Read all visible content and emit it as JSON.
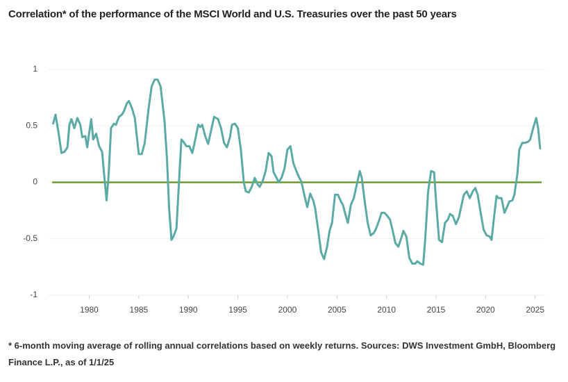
{
  "chart_data": {
    "type": "line",
    "title": "Correlation* of the performance of the MSCI World and U.S. Treasuries over the past 50 years",
    "footnote": "* 6-month moving average of rolling annual correlations based on weekly returns. Sources: DWS Investment GmbH, Bloomberg Finance L.P., as of 1/1/25",
    "color": "#5aaaa6",
    "reference_line": {
      "value": 0,
      "color": "#6e9a2c"
    },
    "grid": true,
    "xlim": [
      1975.9,
      2026
    ],
    "xticks": [
      1980,
      1985,
      1990,
      1995,
      2000,
      2005,
      2010,
      2015,
      2020,
      2025
    ],
    "ylim": [
      -1,
      1
    ],
    "yticks": [
      1,
      0.5,
      0,
      -0.5,
      -1
    ],
    "x": [
      1976.36,
      1976.6,
      1976.9,
      1977.2,
      1977.5,
      1977.8,
      1978.0,
      1978.2,
      1978.5,
      1978.8,
      1979.1,
      1979.3,
      1979.6,
      1979.8,
      1980.0,
      1980.2,
      1980.4,
      1980.7,
      1981.0,
      1981.3,
      1981.5,
      1981.75,
      1981.96,
      1982.2,
      1982.5,
      1982.7,
      1983.0,
      1983.3,
      1983.5,
      1983.8,
      1984.0,
      1984.3,
      1984.6,
      1984.8,
      1985.0,
      1985.3,
      1985.6,
      1986.0,
      1986.3,
      1986.6,
      1986.9,
      1987.2,
      1987.6,
      1987.85,
      1988.06,
      1988.3,
      1988.5,
      1988.8,
      1989.1,
      1989.3,
      1989.5,
      1989.8,
      1990.1,
      1990.4,
      1990.7,
      1991.0,
      1991.2,
      1991.4,
      1991.7,
      1992.0,
      1992.3,
      1992.6,
      1993.0,
      1993.3,
      1993.6,
      1993.9,
      1994.2,
      1994.4,
      1994.7,
      1995.0,
      1995.3,
      1995.6,
      1995.8,
      1996.1,
      1996.4,
      1996.7,
      1997.0,
      1997.2,
      1997.5,
      1997.8,
      1998.1,
      1998.4,
      1998.6,
      1998.9,
      1999.1,
      1999.4,
      1999.7,
      2000.0,
      2000.3,
      2000.6,
      2000.9,
      2001.2,
      2001.4,
      2001.7,
      2002.0,
      2002.3,
      2002.6,
      2002.8,
      2003.1,
      2003.4,
      2003.7,
      2004.0,
      2004.25,
      2004.5,
      2004.8,
      2005.1,
      2005.4,
      2005.6,
      2005.9,
      2006.1,
      2006.4,
      2006.7,
      2007.0,
      2007.3,
      2007.5,
      2007.8,
      2008.1,
      2008.4,
      2008.7,
      2008.9,
      2009.2,
      2009.5,
      2009.8,
      2010.1,
      2010.35,
      2010.6,
      2010.9,
      2011.2,
      2011.5,
      2011.7,
      2012.0,
      2012.3,
      2012.6,
      2012.9,
      2013.1,
      2013.4,
      2013.7,
      2013.9,
      2014.2,
      2014.5,
      2014.8,
      2015.0,
      2015.3,
      2015.6,
      2015.9,
      2016.2,
      2016.4,
      2016.7,
      2017.0,
      2017.3,
      2017.5,
      2017.8,
      2018.1,
      2018.4,
      2018.7,
      2018.96,
      2019.2,
      2019.5,
      2019.8,
      2020.1,
      2020.4,
      2020.6,
      2020.9,
      2021.1,
      2021.3,
      2021.6,
      2021.9,
      2022.1,
      2022.4,
      2022.7,
      2022.9,
      2023.2,
      2023.4,
      2023.7,
      2024.0,
      2024.3,
      2024.5,
      2024.8,
      2025.1,
      2025.3,
      2025.5
    ],
    "values": [
      0.52,
      0.6,
      0.44,
      0.26,
      0.27,
      0.31,
      0.51,
      0.56,
      0.48,
      0.57,
      0.51,
      0.4,
      0.41,
      0.31,
      0.44,
      0.56,
      0.38,
      0.43,
      0.32,
      0.27,
      0.07,
      -0.16,
      0.07,
      0.48,
      0.52,
      0.51,
      0.58,
      0.6,
      0.63,
      0.7,
      0.72,
      0.66,
      0.57,
      0.41,
      0.25,
      0.25,
      0.35,
      0.66,
      0.85,
      0.91,
      0.91,
      0.85,
      0.54,
      0.2,
      -0.23,
      -0.51,
      -0.48,
      -0.41,
      0.07,
      0.38,
      0.36,
      0.32,
      0.32,
      0.26,
      0.38,
      0.51,
      0.49,
      0.51,
      0.41,
      0.34,
      0.46,
      0.58,
      0.56,
      0.48,
      0.35,
      0.31,
      0.4,
      0.51,
      0.52,
      0.48,
      0.29,
      0.0,
      -0.08,
      -0.09,
      -0.04,
      0.04,
      -0.02,
      -0.04,
      0.01,
      0.1,
      0.26,
      0.23,
      0.09,
      0.04,
      0.0,
      0.04,
      0.12,
      0.29,
      0.32,
      0.17,
      0.1,
      0.04,
      0.01,
      -0.11,
      -0.22,
      -0.1,
      -0.16,
      -0.23,
      -0.42,
      -0.62,
      -0.68,
      -0.57,
      -0.43,
      -0.36,
      -0.11,
      -0.11,
      -0.17,
      -0.2,
      -0.3,
      -0.36,
      -0.2,
      -0.14,
      -0.02,
      0.1,
      0.04,
      -0.17,
      -0.36,
      -0.47,
      -0.45,
      -0.42,
      -0.35,
      -0.27,
      -0.27,
      -0.3,
      -0.33,
      -0.42,
      -0.54,
      -0.57,
      -0.49,
      -0.43,
      -0.48,
      -0.67,
      -0.72,
      -0.72,
      -0.7,
      -0.72,
      -0.73,
      -0.51,
      -0.08,
      0.1,
      0.09,
      -0.17,
      -0.51,
      -0.53,
      -0.36,
      -0.33,
      -0.28,
      -0.3,
      -0.37,
      -0.31,
      -0.23,
      -0.11,
      -0.08,
      -0.14,
      -0.08,
      -0.05,
      -0.11,
      -0.27,
      -0.42,
      -0.47,
      -0.48,
      -0.51,
      -0.27,
      -0.12,
      -0.14,
      -0.14,
      -0.27,
      -0.23,
      -0.17,
      -0.16,
      -0.11,
      0.07,
      0.29,
      0.35,
      0.35,
      0.36,
      0.38,
      0.48,
      0.57,
      0.48,
      0.3
    ]
  }
}
